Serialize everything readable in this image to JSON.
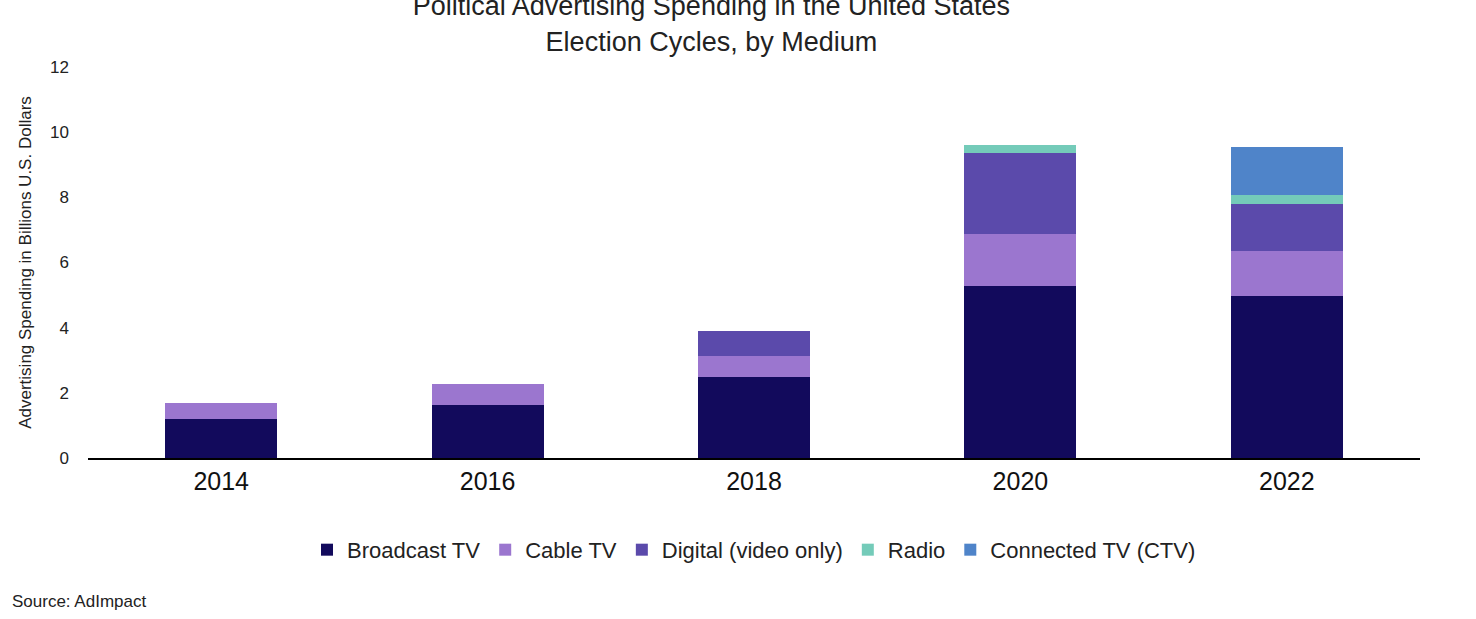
{
  "chart_data": {
    "type": "bar",
    "stacked": true,
    "title": "Political Advertising Spending in the United States\nElection Cycles, by Medium",
    "y_label": "Advertising Spending in Billions U.S. Dollars",
    "source": "Source: AdImpact",
    "categories": [
      "2014",
      "2016",
      "2018",
      "2020",
      "2022"
    ],
    "series": [
      {
        "name": "Broadcast TV",
        "color": "#120a5c",
        "values": [
          1.2,
          1.63,
          2.48,
          5.28,
          4.97
        ]
      },
      {
        "name": "Cable TV",
        "color": "#9b76cf",
        "values": [
          0.49,
          0.64,
          0.65,
          1.59,
          1.38
        ]
      },
      {
        "name": "Digital (video only)",
        "color": "#5b4aab",
        "values": [
          null,
          null,
          0.77,
          2.49,
          1.44
        ]
      },
      {
        "name": "Radio",
        "color": "#74cbb9",
        "values": [
          null,
          null,
          null,
          0.24,
          0.28
        ]
      },
      {
        "name": "Connected TV (CTV)",
        "color": "#4f84c9",
        "values": [
          null,
          null,
          null,
          null,
          1.47
        ]
      }
    ],
    "ylim": [
      0,
      12
    ],
    "yticks": [
      0,
      2,
      4,
      6,
      8,
      10,
      12
    ],
    "grid": false,
    "legend": "bottom"
  }
}
